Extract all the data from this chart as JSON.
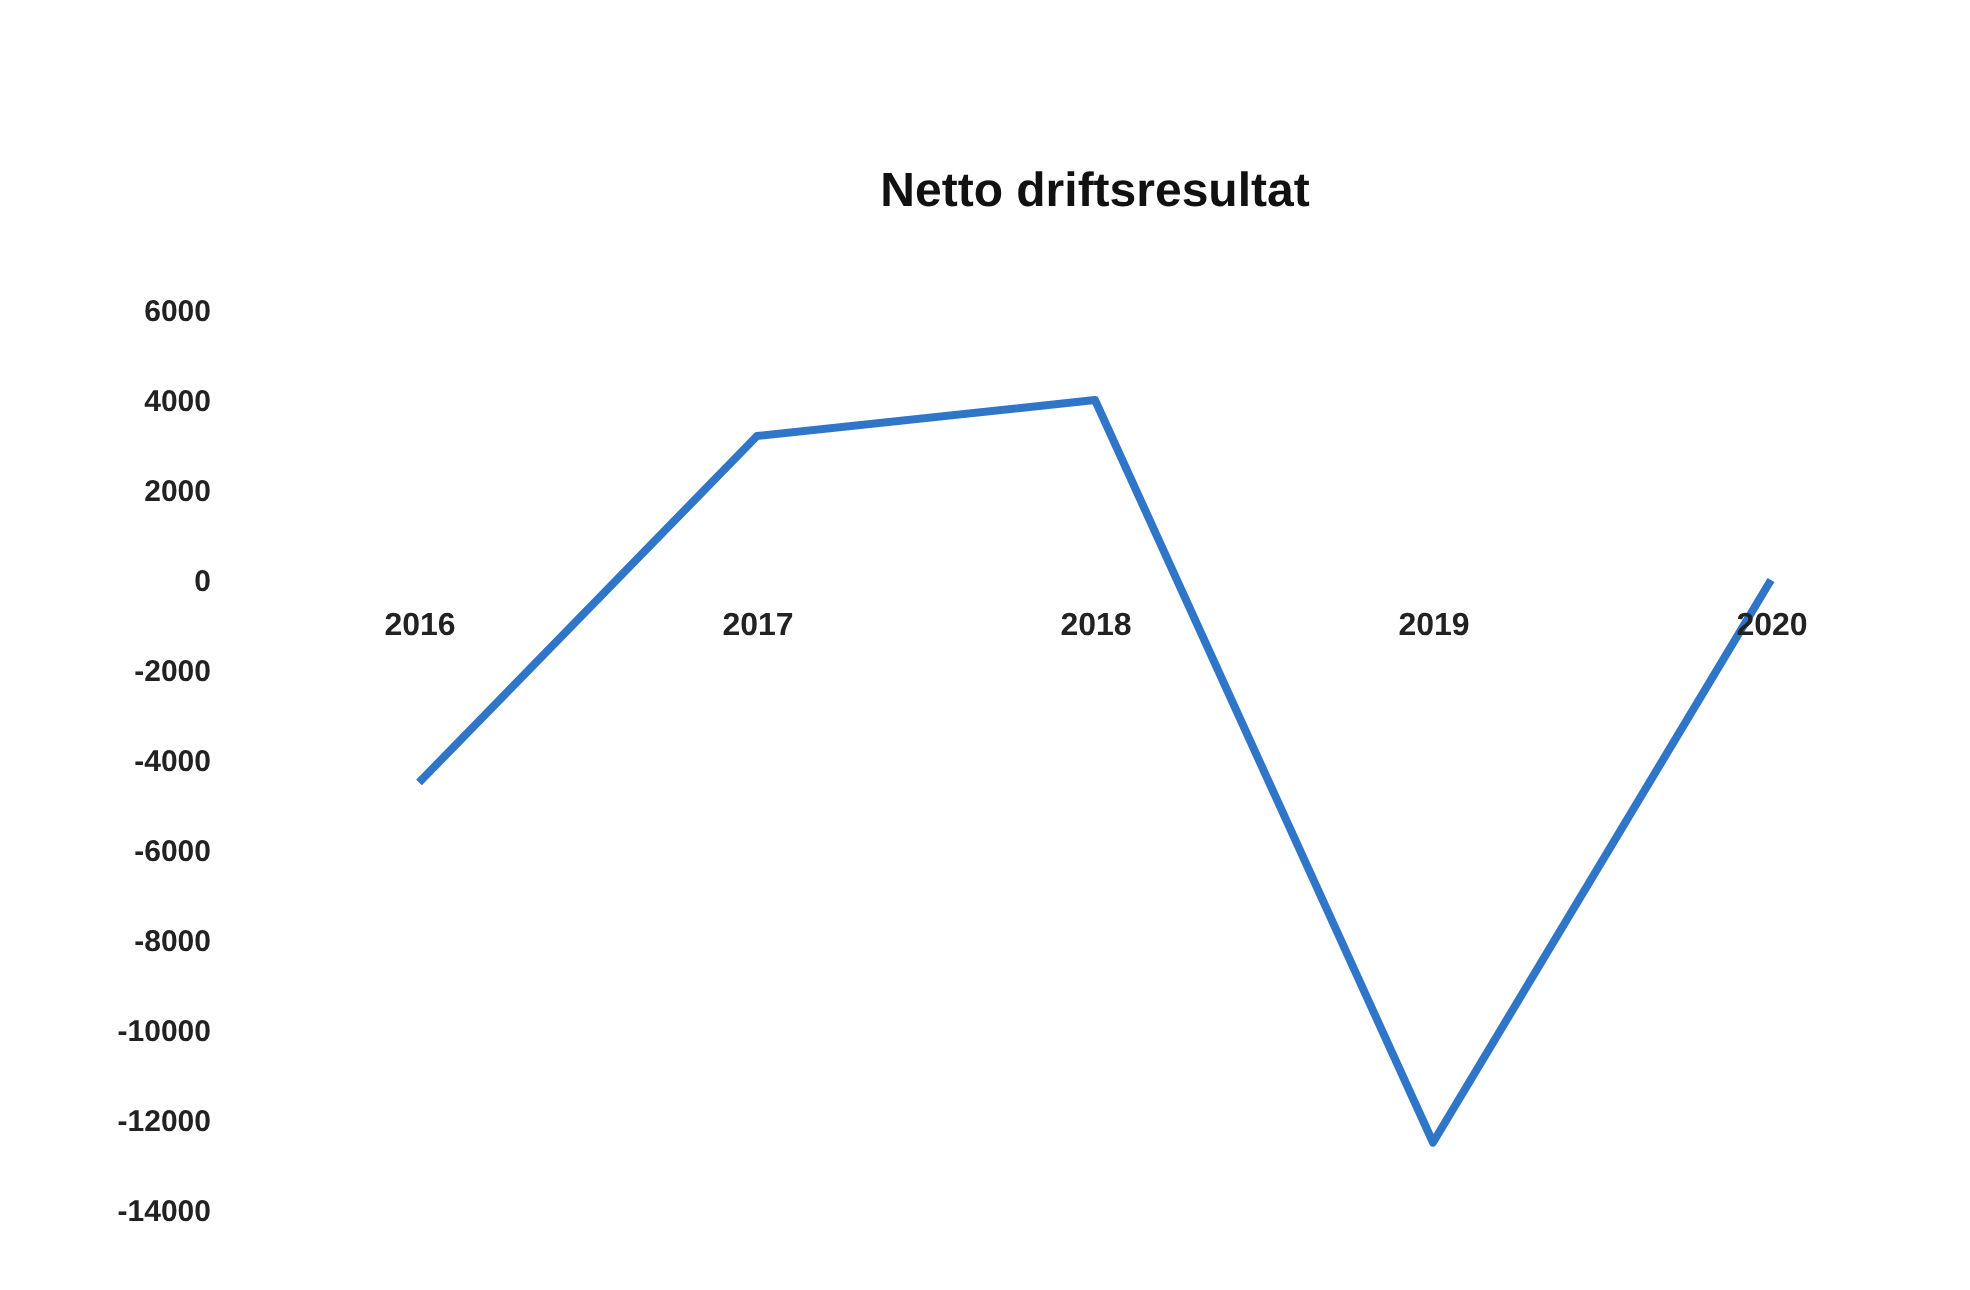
{
  "chart_data": {
    "type": "line",
    "title": "Netto driftsresultat",
    "categories": [
      "2016",
      "2017",
      "2018",
      "2019",
      "2020"
    ],
    "series": [
      {
        "color": "#2f75c8",
        "values": [
          -4500,
          3200,
          4000,
          -12500,
          0
        ]
      }
    ],
    "ylim": [
      -14000,
      6000
    ],
    "yticks": [
      -14000,
      -12000,
      -10000,
      -8000,
      -6000,
      -4000,
      -2000,
      0,
      2000,
      4000,
      6000
    ],
    "grid": false,
    "marker": "none",
    "line_style": "solid"
  }
}
